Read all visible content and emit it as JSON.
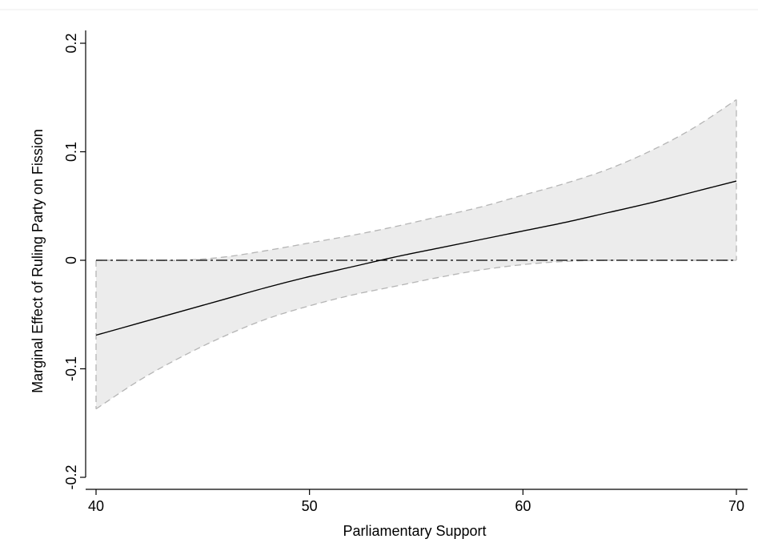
{
  "chart_data": {
    "type": "line",
    "title": "",
    "xlabel": "Parliamentary Support",
    "ylabel": "Marginal Effect of Ruling Party on Fission",
    "xlim": [
      40,
      70
    ],
    "ylim": [
      -0.2,
      0.2
    ],
    "xticks": [
      40,
      50,
      60,
      70
    ],
    "xtick_labels": [
      "40",
      "50",
      "60",
      "70"
    ],
    "yticks": [
      -0.2,
      -0.1,
      0,
      0.1,
      0.2
    ],
    "ytick_labels": [
      "-0.2",
      "-0.1",
      "0",
      "0.1",
      "0.2"
    ],
    "x": [
      40,
      42,
      44,
      46,
      48,
      50,
      52,
      54,
      56,
      58,
      60,
      62,
      64,
      66,
      68,
      70
    ],
    "series": [
      {
        "values": [
          -0.069,
          -0.058,
          -0.047,
          -0.036,
          -0.025,
          -0.015,
          -0.006,
          0.003,
          0.011,
          0.019,
          0.027,
          0.035,
          0.044,
          0.053,
          0.063,
          0.073
        ],
        "color": "#000000",
        "style": "solid"
      }
    ],
    "confidence_band": {
      "lower": [
        -0.137,
        -0.111,
        -0.089,
        -0.07,
        -0.054,
        -0.042,
        -0.032,
        -0.024,
        -0.016,
        -0.009,
        -0.004,
        -0.001,
        0.0,
        0.0,
        0.0,
        0.0
      ],
      "upper": [
        0.0,
        0.0,
        0.0,
        0.003,
        0.009,
        0.016,
        0.023,
        0.031,
        0.04,
        0.049,
        0.06,
        0.071,
        0.084,
        0.101,
        0.122,
        0.148
      ],
      "fill": "#ececec",
      "edge": "#b5b5b5",
      "style": "dashed"
    },
    "reference_line": {
      "y": 0,
      "style": "dash-dot",
      "color": "#000000"
    },
    "grid": false,
    "legend": "none"
  }
}
